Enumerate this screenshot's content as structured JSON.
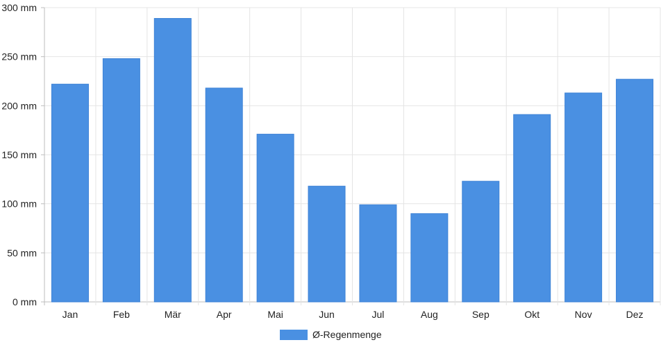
{
  "chart_data": {
    "type": "bar",
    "categories": [
      "Jan",
      "Feb",
      "Mär",
      "Apr",
      "Mai",
      "Jun",
      "Jul",
      "Aug",
      "Sep",
      "Okt",
      "Nov",
      "Dez"
    ],
    "series": [
      {
        "name": "Ø-Regenmenge",
        "color": "#4a90e2",
        "values": [
          222,
          248,
          289,
          218,
          171,
          118,
          99,
          90,
          123,
          191,
          213,
          227
        ]
      }
    ],
    "y_ticks": [
      "0 mm",
      "50 mm",
      "100 mm",
      "150 mm",
      "200 mm",
      "250 mm",
      "300 mm"
    ],
    "ylim": [
      0,
      300
    ],
    "y_step": 50,
    "grid": true,
    "legend_position": "bottom"
  }
}
